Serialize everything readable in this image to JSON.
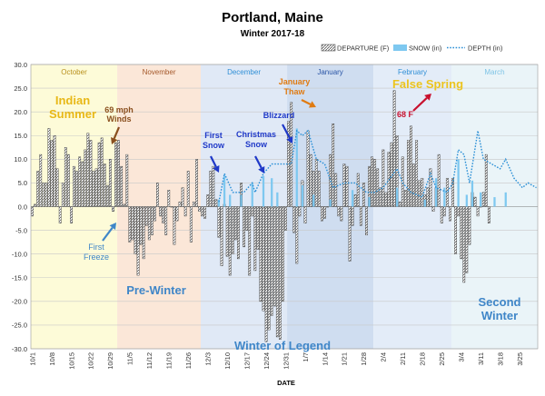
{
  "chart_data": {
    "type": "bar",
    "title": "Portland, Maine",
    "subtitle": "Winter 2017-18",
    "xlabel": "DATE",
    "ylabel": "",
    "ylim": [
      -30,
      30
    ],
    "y_ticks": [
      "30.0",
      "25.0",
      "20.0",
      "15.0",
      "10.0",
      "5.0",
      "0.0",
      "-5.0",
      "-10.0",
      "-15.0",
      "-20.0",
      "-25.0",
      "-30.0"
    ],
    "grid": true,
    "legend_position": "top-right",
    "legend": [
      {
        "label": "DEPARTURE (F)",
        "kind": "hatched-bar"
      },
      {
        "label": "SNOW (in)",
        "kind": "bar",
        "color": "#7ec8f0"
      },
      {
        "label": "DEPTH (in)",
        "kind": "dotted-line",
        "color": "#2a8fd6"
      }
    ],
    "x_tick_labels": [
      "10/1",
      "10/8",
      "10/15",
      "10/22",
      "10/29",
      "11/5",
      "11/12",
      "11/19",
      "11/26",
      "12/3",
      "12/10",
      "12/17",
      "12/24",
      "12/31",
      "1/7",
      "1/14",
      "1/21",
      "1/28",
      "2/4",
      "2/11",
      "2/18",
      "2/25",
      "3/4",
      "3/11",
      "3/18",
      "3/25"
    ],
    "months": [
      {
        "label": "October",
        "start_day": 0,
        "end_day": 31,
        "bg": "#fdfbd8",
        "label_color": "#b8901c"
      },
      {
        "label": "November",
        "start_day": 31,
        "end_day": 61,
        "bg": "#fbe7d8",
        "label_color": "#a4582a"
      },
      {
        "label": "December",
        "start_day": 61,
        "end_day": 92,
        "bg": "#e0e9f6",
        "label_color": "#2f8fd6"
      },
      {
        "label": "January",
        "start_day": 92,
        "end_day": 123,
        "bg": "#cfddf0",
        "label_color": "#2a55a6"
      },
      {
        "label": "February",
        "start_day": 123,
        "end_day": 151,
        "bg": "#e3ecf8",
        "label_color": "#2f8fd6"
      },
      {
        "label": "March",
        "start_day": 151,
        "end_day": 182,
        "bg": "#eaf4f8",
        "label_color": "#7fc4e6"
      }
    ],
    "departure_series_name": "DEPARTURE (F)",
    "departure": [
      -2,
      0.5,
      7.5,
      11,
      5,
      5,
      16.5,
      14,
      15,
      8,
      -3.5,
      5,
      12.5,
      11,
      -3.5,
      8.5,
      7.5,
      10.5,
      9.5,
      12,
      15.5,
      14,
      7.5,
      8,
      13.5,
      14.5,
      9,
      4.5,
      10,
      -1,
      13.5,
      14,
      8.5,
      0.5,
      11,
      -7.5,
      -7,
      -10,
      -14.5,
      -8,
      -11,
      -4,
      -7,
      -6,
      -3,
      5,
      -2,
      -3.5,
      -6,
      3.5,
      0,
      -8,
      -3,
      1,
      4,
      -2,
      7.5,
      -7.5,
      1,
      10,
      -1,
      -2,
      -2.5,
      2.5,
      7.5,
      8.5,
      1.5,
      -6.5,
      -12.5,
      0.5,
      -10.5,
      -14.5,
      -10,
      -7,
      -11,
      5,
      -8.5,
      -5,
      -14.5,
      -2,
      -13.5,
      -9,
      -20,
      -22,
      -28.5,
      -26,
      -23,
      -21,
      -27.5,
      -28,
      -20,
      -5,
      18,
      22,
      -5.5,
      -12,
      -2,
      5.5,
      -3.5,
      16,
      11,
      7.5,
      10,
      7.5,
      -3,
      -2.5,
      0,
      11,
      17.5,
      7,
      -2,
      -3,
      9,
      8.5,
      -11.5,
      -4,
      2.5,
      7,
      -4,
      5,
      -6,
      8.5,
      10.5,
      10,
      8,
      4,
      12,
      3,
      11.5,
      13.5,
      24.5,
      15,
      1,
      10.5,
      3.5,
      14,
      17,
      9,
      14,
      5.5,
      6,
      2.5,
      4,
      8,
      -1,
      4,
      11,
      -3.5,
      -2,
      6,
      -3,
      6,
      -10,
      -2,
      -11,
      -16,
      -14,
      -8,
      3,
      2,
      -2,
      0,
      3,
      11,
      -3.5
    ],
    "snow_series_name": "SNOW (in)",
    "snow": [
      {
        "day": 67,
        "value": 1.5
      },
      {
        "day": 69,
        "value": 6.5
      },
      {
        "day": 71,
        "value": 2.5
      },
      {
        "day": 75,
        "value": 2.5
      },
      {
        "day": 79,
        "value": 5
      },
      {
        "day": 83,
        "value": 6.5
      },
      {
        "day": 86,
        "value": 6
      },
      {
        "day": 88,
        "value": 3
      },
      {
        "day": 95,
        "value": 16.5
      },
      {
        "day": 97,
        "value": 4.5
      },
      {
        "day": 101,
        "value": 2.5
      },
      {
        "day": 107,
        "value": 1.5
      },
      {
        "day": 115,
        "value": 3.5
      },
      {
        "day": 121,
        "value": 2
      },
      {
        "day": 131,
        "value": 4
      },
      {
        "day": 141,
        "value": 1.5
      },
      {
        "day": 145,
        "value": 6
      },
      {
        "day": 148,
        "value": 4
      },
      {
        "day": 153,
        "value": 10
      },
      {
        "day": 156,
        "value": 2.5
      },
      {
        "day": 158,
        "value": 5.5
      },
      {
        "day": 161,
        "value": 3
      },
      {
        "day": 166,
        "value": 2
      },
      {
        "day": 170,
        "value": 3
      }
    ],
    "depth_series_name": "DEPTH (in)",
    "depth": [
      [
        67,
        1
      ],
      [
        69,
        7
      ],
      [
        72,
        3
      ],
      [
        76,
        3
      ],
      [
        79,
        5
      ],
      [
        80,
        3
      ],
      [
        83,
        7
      ],
      [
        86,
        9
      ],
      [
        90,
        9
      ],
      [
        93,
        9
      ],
      [
        95,
        16
      ],
      [
        97,
        15
      ],
      [
        99,
        16
      ],
      [
        102,
        10
      ],
      [
        105,
        9
      ],
      [
        108,
        4
      ],
      [
        112,
        5
      ],
      [
        116,
        5
      ],
      [
        120,
        3
      ],
      [
        123,
        3
      ],
      [
        126,
        4
      ],
      [
        131,
        8
      ],
      [
        133,
        5
      ],
      [
        136,
        3
      ],
      [
        140,
        2
      ],
      [
        143,
        7
      ],
      [
        145,
        4
      ],
      [
        149,
        3
      ],
      [
        151,
        5
      ],
      [
        153,
        12
      ],
      [
        155,
        11
      ],
      [
        157,
        5
      ],
      [
        160,
        16
      ],
      [
        162,
        10
      ],
      [
        165,
        9
      ],
      [
        168,
        8
      ],
      [
        170,
        10
      ],
      [
        173,
        6
      ],
      [
        176,
        4
      ],
      [
        178,
        5
      ],
      [
        181,
        4
      ]
    ],
    "annotations": [
      {
        "text": "Indian\nSummer",
        "color": "#e8b817"
      },
      {
        "text": "69 mph\nWinds",
        "color": "#8a4f1e"
      },
      {
        "text": "First\nFreeze",
        "color": "#3f86c8"
      },
      {
        "text": "Pre-Winter",
        "color": "#3f86c8"
      },
      {
        "text": "First\nSnow",
        "color": "#1f39c8"
      },
      {
        "text": "Christmas\nSnow",
        "color": "#1f39c8"
      },
      {
        "text": "Blizzard",
        "color": "#1f39c8"
      },
      {
        "text": "January\nThaw",
        "color": "#e07b12"
      },
      {
        "text": "False Spring",
        "color": "#ecc41e"
      },
      {
        "text": "68 F",
        "color": "#c8102e"
      },
      {
        "text": "Winter of Legend",
        "color": "#3f86c8"
      },
      {
        "text": "Second\nWinter",
        "color": "#3f86c8"
      }
    ]
  }
}
